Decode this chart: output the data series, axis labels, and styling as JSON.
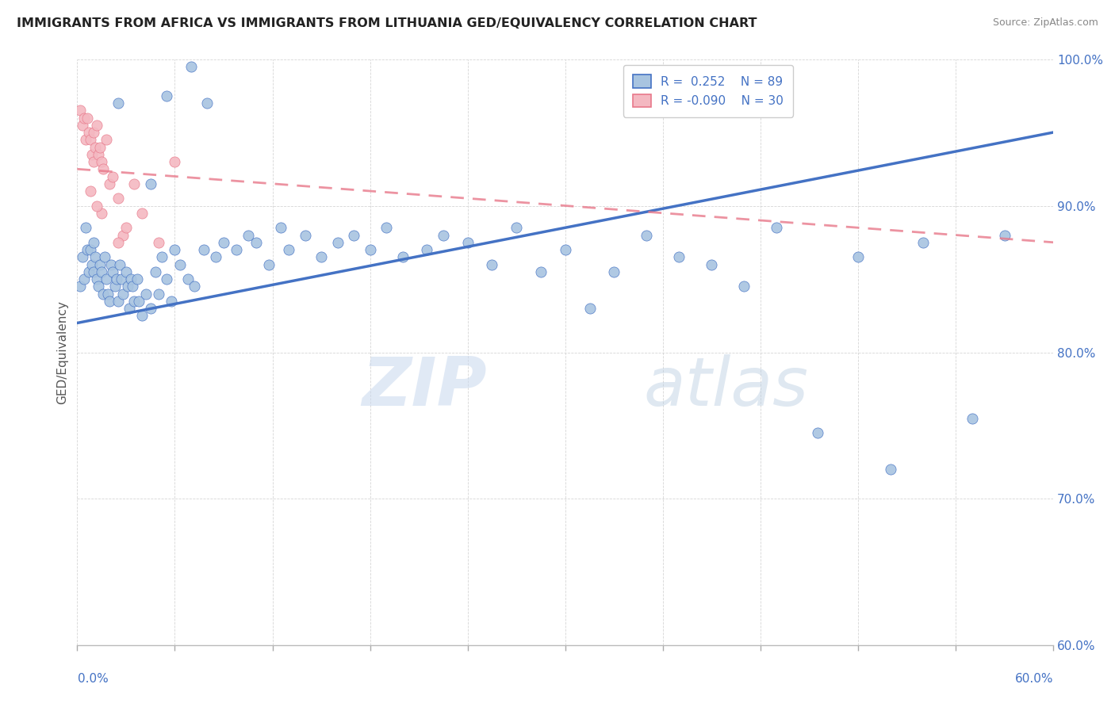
{
  "title": "IMMIGRANTS FROM AFRICA VS IMMIGRANTS FROM LITHUANIA GED/EQUIVALENCY CORRELATION CHART",
  "source": "Source: ZipAtlas.com",
  "ylabel": "GED/Equivalency",
  "yticks": [
    60.0,
    70.0,
    80.0,
    90.0,
    100.0
  ],
  "xlim": [
    0.0,
    60.0
  ],
  "ylim": [
    60.0,
    100.0
  ],
  "africa_R": 0.252,
  "africa_N": 89,
  "lithuania_R": -0.09,
  "lithuania_N": 30,
  "africa_color": "#a8c4e0",
  "africa_line_color": "#4472c4",
  "lithuania_color": "#f4b8c1",
  "lithuania_line_color": "#e8788a",
  "background_color": "#ffffff",
  "africa_scatter": [
    [
      0.2,
      84.5
    ],
    [
      0.3,
      86.5
    ],
    [
      0.4,
      85.0
    ],
    [
      0.5,
      88.5
    ],
    [
      0.6,
      87.0
    ],
    [
      0.7,
      85.5
    ],
    [
      0.8,
      87.0
    ],
    [
      0.9,
      86.0
    ],
    [
      1.0,
      87.5
    ],
    [
      1.0,
      85.5
    ],
    [
      1.1,
      86.5
    ],
    [
      1.2,
      85.0
    ],
    [
      1.3,
      84.5
    ],
    [
      1.4,
      86.0
    ],
    [
      1.5,
      85.5
    ],
    [
      1.6,
      84.0
    ],
    [
      1.7,
      86.5
    ],
    [
      1.8,
      85.0
    ],
    [
      1.9,
      84.0
    ],
    [
      2.0,
      83.5
    ],
    [
      2.1,
      86.0
    ],
    [
      2.2,
      85.5
    ],
    [
      2.3,
      84.5
    ],
    [
      2.4,
      85.0
    ],
    [
      2.5,
      83.5
    ],
    [
      2.6,
      86.0
    ],
    [
      2.7,
      85.0
    ],
    [
      2.8,
      84.0
    ],
    [
      3.0,
      85.5
    ],
    [
      3.1,
      84.5
    ],
    [
      3.2,
      83.0
    ],
    [
      3.3,
      85.0
    ],
    [
      3.4,
      84.5
    ],
    [
      3.5,
      83.5
    ],
    [
      3.7,
      85.0
    ],
    [
      3.8,
      83.5
    ],
    [
      4.0,
      82.5
    ],
    [
      4.2,
      84.0
    ],
    [
      4.5,
      83.0
    ],
    [
      4.8,
      85.5
    ],
    [
      5.0,
      84.0
    ],
    [
      5.2,
      86.5
    ],
    [
      5.5,
      85.0
    ],
    [
      5.8,
      83.5
    ],
    [
      6.0,
      87.0
    ],
    [
      6.3,
      86.0
    ],
    [
      6.8,
      85.0
    ],
    [
      7.2,
      84.5
    ],
    [
      7.8,
      87.0
    ],
    [
      8.5,
      86.5
    ],
    [
      9.0,
      87.5
    ],
    [
      9.8,
      87.0
    ],
    [
      10.5,
      88.0
    ],
    [
      11.0,
      87.5
    ],
    [
      11.8,
      86.0
    ],
    [
      12.5,
      88.5
    ],
    [
      13.0,
      87.0
    ],
    [
      14.0,
      88.0
    ],
    [
      15.0,
      86.5
    ],
    [
      16.0,
      87.5
    ],
    [
      17.0,
      88.0
    ],
    [
      18.0,
      87.0
    ],
    [
      19.0,
      88.5
    ],
    [
      20.0,
      86.5
    ],
    [
      21.5,
      87.0
    ],
    [
      22.5,
      88.0
    ],
    [
      24.0,
      87.5
    ],
    [
      25.5,
      86.0
    ],
    [
      27.0,
      88.5
    ],
    [
      28.5,
      85.5
    ],
    [
      30.0,
      87.0
    ],
    [
      31.5,
      83.0
    ],
    [
      33.0,
      85.5
    ],
    [
      35.0,
      88.0
    ],
    [
      37.0,
      86.5
    ],
    [
      39.0,
      86.0
    ],
    [
      41.0,
      84.5
    ],
    [
      43.0,
      88.5
    ],
    [
      45.5,
      74.5
    ],
    [
      48.0,
      86.5
    ],
    [
      50.0,
      72.0
    ],
    [
      52.0,
      87.5
    ],
    [
      55.0,
      75.5
    ],
    [
      57.0,
      88.0
    ],
    [
      4.5,
      91.5
    ],
    [
      2.5,
      97.0
    ],
    [
      5.5,
      97.5
    ],
    [
      8.0,
      97.0
    ],
    [
      7.0,
      99.5
    ]
  ],
  "lithuania_scatter": [
    [
      0.2,
      96.5
    ],
    [
      0.3,
      95.5
    ],
    [
      0.4,
      96.0
    ],
    [
      0.5,
      94.5
    ],
    [
      0.6,
      96.0
    ],
    [
      0.7,
      95.0
    ],
    [
      0.8,
      94.5
    ],
    [
      0.9,
      93.5
    ],
    [
      1.0,
      95.0
    ],
    [
      1.0,
      93.0
    ],
    [
      1.1,
      94.0
    ],
    [
      1.2,
      95.5
    ],
    [
      1.3,
      93.5
    ],
    [
      1.4,
      94.0
    ],
    [
      1.5,
      93.0
    ],
    [
      1.6,
      92.5
    ],
    [
      1.8,
      94.5
    ],
    [
      2.0,
      91.5
    ],
    [
      2.2,
      92.0
    ],
    [
      2.5,
      90.5
    ],
    [
      2.8,
      88.0
    ],
    [
      3.5,
      91.5
    ],
    [
      4.0,
      89.5
    ],
    [
      5.0,
      87.5
    ],
    [
      1.5,
      89.5
    ],
    [
      2.5,
      87.5
    ],
    [
      3.0,
      88.5
    ],
    [
      6.0,
      93.0
    ],
    [
      0.8,
      91.0
    ],
    [
      1.2,
      90.0
    ]
  ],
  "africa_trendline": [
    0.0,
    82.0,
    60.0,
    95.0
  ],
  "lithuania_trendline": [
    0.0,
    92.5,
    60.0,
    87.5
  ]
}
